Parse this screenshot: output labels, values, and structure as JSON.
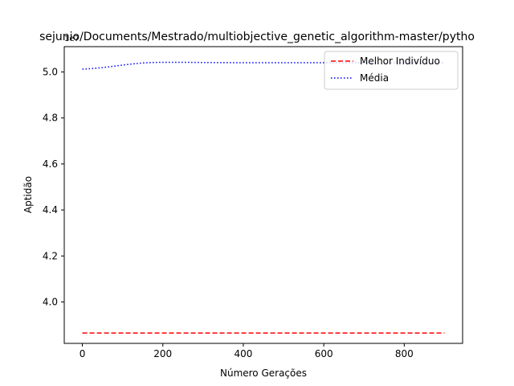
{
  "chart_data": {
    "type": "line",
    "title": "sejunio/Documents/Mestrado/multiobjective_genetic_algorithm-master/pytho",
    "xlabel": "Número Gerações",
    "ylabel": "Aptidão",
    "y_offset_label": "1e7",
    "xlim": [
      -45,
      945
    ],
    "ylim": [
      3.82,
      5.11
    ],
    "x_ticks": [
      0,
      200,
      400,
      600,
      800
    ],
    "x_tick_labels": [
      "0",
      "200",
      "400",
      "600",
      "800"
    ],
    "y_ticks": [
      4.0,
      4.2,
      4.4,
      4.6,
      4.8,
      5.0
    ],
    "y_tick_labels": [
      "4.0",
      "4.2",
      "4.4",
      "4.6",
      "4.8",
      "5.0"
    ],
    "grid": false,
    "legend_position": "top-right",
    "series": [
      {
        "name": "Melhor Indivíduo",
        "color": "#ff0000",
        "linestyle": "dashed",
        "x": [
          0,
          900
        ],
        "y": [
          3.865,
          3.865
        ]
      },
      {
        "name": "Média",
        "color": "#0000ff",
        "linestyle": "dotted",
        "x": [
          0,
          25,
          50,
          75,
          100,
          125,
          150,
          175,
          200,
          225,
          250,
          300,
          400,
          500,
          600,
          700,
          800,
          900
        ],
        "y": [
          5.012,
          5.015,
          5.019,
          5.024,
          5.03,
          5.035,
          5.039,
          5.041,
          5.042,
          5.042,
          5.042,
          5.041,
          5.04,
          5.04,
          5.04,
          5.04,
          5.04,
          5.04
        ]
      }
    ]
  }
}
